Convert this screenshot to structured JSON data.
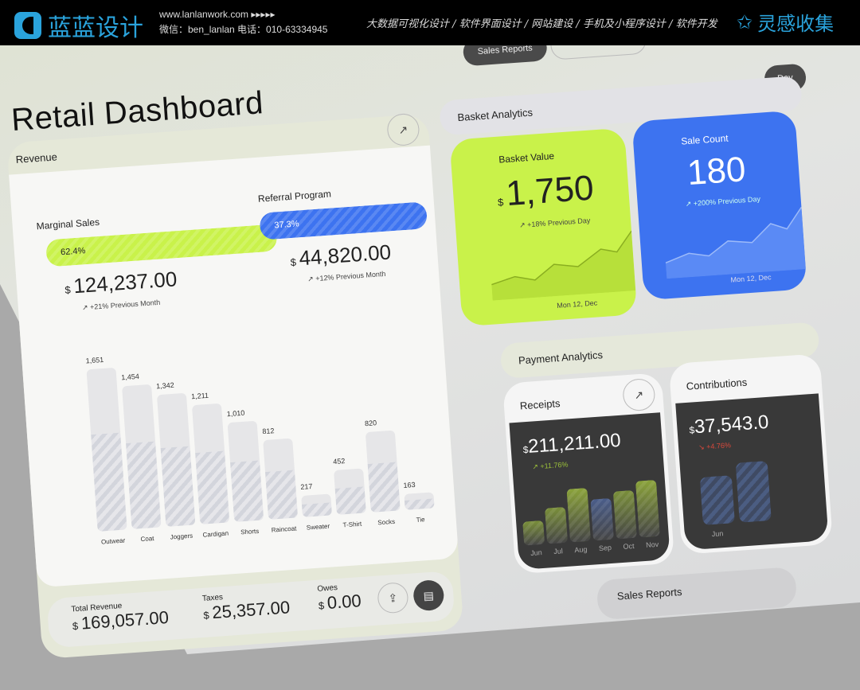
{
  "header": {
    "logo_text": "蓝蓝设计",
    "website": "www.lanlanwork.com  ▸▸▸▸▸",
    "contact": "微信：ben_lanlan    电话：010-63334945",
    "services": "大数据可视化设计 / 软件界面设计 / 网站建设 / 手机及小程序设计 / 软件开发",
    "brand": "灵感收集"
  },
  "dashboard": {
    "title": "Retail Dashboard",
    "tabs": [
      "Sales Reports"
    ],
    "period": "Day",
    "revenue": {
      "label": "Revenue",
      "marginal": {
        "label": "Marginal Sales",
        "percent": "62.4%",
        "value": "124,237.00",
        "currency": "$",
        "trend": "+21% Previous Month"
      },
      "referral": {
        "label": "Referral Program",
        "percent": "37.3%",
        "value": "44,820.00",
        "currency": "$",
        "trend": "+12% Previous Month"
      },
      "totals": [
        {
          "label": "Total Revenue",
          "value": "169,057.00",
          "currency": "$"
        },
        {
          "label": "Taxes",
          "value": "25,357.00",
          "currency": "$"
        },
        {
          "label": "Owes",
          "value": "0.00",
          "currency": "$"
        }
      ]
    },
    "basket": {
      "label": "Basket Analytics",
      "value_card": {
        "label": "Basket Value",
        "currency": "$",
        "value": "1,750",
        "trend": "+18% Previous Day",
        "date": "Mon 12, Dec"
      },
      "count_card": {
        "label": "Sale Count",
        "value": "180",
        "trend": "+200% Previous Day",
        "date": "Mon 12, Dec"
      }
    },
    "payment": {
      "label": "Payment Analytics",
      "receipts": {
        "label": "Receipts",
        "currency": "$",
        "value": "211,211.00",
        "trend": "+11.76%",
        "months": [
          "Jun",
          "Jul",
          "Aug",
          "Sep",
          "Oct",
          "Nov"
        ]
      },
      "contributions": {
        "label": "Contributions",
        "currency": "$",
        "value": "37,543.0",
        "trend": "+4.76%",
        "months": [
          "Jun"
        ]
      }
    },
    "sales_reports_label": "Sales Reports",
    "colors": {
      "lime": "#c9f24a",
      "blue": "#3d73f0",
      "dark": "#393939"
    }
  },
  "chart_data": {
    "type": "bar",
    "categories": [
      "Outwear",
      "Coat",
      "Joggers",
      "Cardigan",
      "Shorts",
      "Raincoat",
      "Sweater",
      "T-Shirt",
      "Socks",
      "Tie"
    ],
    "values": [
      1651,
      1454,
      1342,
      1211,
      1010,
      812,
      217,
      452,
      820,
      163
    ],
    "value_labels": [
      "1,651",
      "1,454",
      "1,342",
      "1,211",
      "1,010",
      "812",
      "217",
      "452",
      "820",
      "163"
    ]
  }
}
